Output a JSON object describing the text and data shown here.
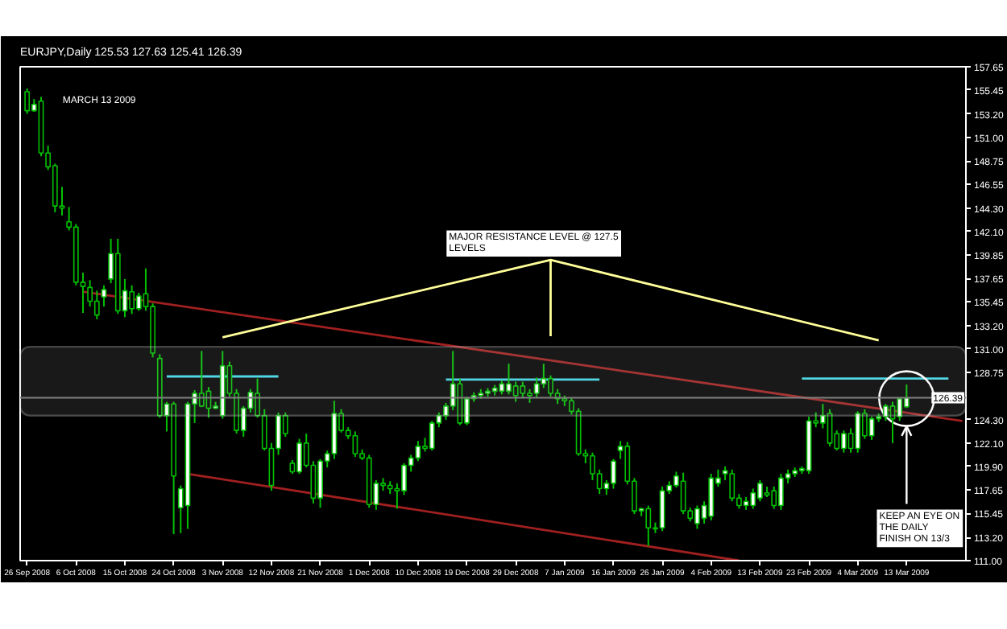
{
  "chart_data": {
    "type": "candlestick",
    "title": "EURJPY,Daily  125.53 127.63 125.41 126.39",
    "annotations": [
      "MARCH 13 2009",
      "MAJOR RESISTANCE LEVEL @ 127.5 LEVELS",
      {
        "text": "KEEP AN EYE ON THE DAILY FINISH ON 13/3",
        "x": "13 Mar 2009",
        "y": 123.7
      }
    ],
    "categories": [
      "26 Sep 2008",
      null,
      null,
      null,
      null,
      null,
      null,
      "6 Oct 2008",
      null,
      null,
      null,
      null,
      null,
      null,
      "15 Oct 2008",
      null,
      null,
      null,
      null,
      null,
      null,
      "24 Oct 2008",
      null,
      null,
      null,
      null,
      null,
      null,
      "3 Nov 2008",
      null,
      null,
      null,
      null,
      null,
      null,
      "12 Nov 2008",
      null,
      null,
      null,
      null,
      null,
      null,
      "21 Nov 2008",
      null,
      null,
      null,
      null,
      null,
      null,
      "1 Dec 2008",
      null,
      null,
      null,
      null,
      null,
      null,
      "10 Dec 2008",
      null,
      null,
      null,
      null,
      null,
      null,
      "19 Dec 2008",
      null,
      null,
      null,
      null,
      null,
      null,
      "29 Dec 2008",
      null,
      null,
      null,
      null,
      null,
      null,
      "7 Jan 2009",
      null,
      null,
      null,
      null,
      null,
      null,
      "16 Jan 2009",
      null,
      null,
      null,
      null,
      null,
      null,
      "26 Jan 2009",
      null,
      null,
      null,
      null,
      null,
      null,
      "4 Feb 2009",
      null,
      null,
      null,
      null,
      null,
      null,
      "13 Feb 2009",
      null,
      null,
      null,
      null,
      null,
      null,
      "23 Feb 2009",
      null,
      null,
      null,
      null,
      null,
      null,
      "4 Mar 2009",
      null,
      null,
      null,
      null,
      null,
      null,
      "13 Mar 2009",
      null,
      null,
      null,
      null,
      null,
      null,
      null,
      null
    ],
    "ohlc": [
      [
        155.3,
        155.6,
        153.2,
        153.5
      ],
      [
        153.5,
        154.6,
        153.4,
        154.1
      ],
      [
        154.4,
        154.8,
        149.2,
        149.5
      ],
      [
        149.5,
        150.2,
        147.9,
        148.2
      ],
      [
        148.3,
        148.5,
        143.9,
        144.5
      ],
      [
        144.5,
        146.3,
        143.6,
        144.3
      ],
      [
        143.0,
        144.4,
        142.2,
        142.5
      ],
      [
        142.5,
        142.8,
        137.0,
        137.3
      ],
      [
        137.3,
        138.2,
        134.4,
        136.9
      ],
      [
        136.8,
        137.5,
        135.0,
        135.5
      ],
      [
        135.5,
        136.5,
        133.8,
        134.2
      ],
      [
        135.9,
        137.0,
        135.0,
        136.6
      ],
      [
        137.6,
        141.4,
        137.2,
        140.0
      ],
      [
        140.0,
        141.4,
        134.3,
        134.6
      ],
      [
        134.6,
        137.6,
        134.0,
        136.5
      ],
      [
        136.4,
        137.0,
        134.3,
        134.8
      ],
      [
        134.8,
        136.3,
        134.6,
        136.0
      ],
      [
        136.2,
        138.6,
        134.6,
        135.0
      ],
      [
        135.0,
        135.3,
        130.2,
        130.6
      ],
      [
        130.1,
        130.5,
        124.5,
        124.7
      ],
      [
        124.7,
        126.0,
        123.2,
        125.8
      ],
      [
        125.8,
        126.0,
        113.5,
        119.0
      ],
      [
        116.0,
        118.1,
        113.6,
        117.8
      ],
      [
        116.2,
        126.0,
        114.0,
        125.8
      ],
      [
        125.8,
        127.1,
        124.0,
        126.8
      ],
      [
        126.8,
        130.8,
        125.5,
        125.6
      ],
      [
        127.0,
        127.4,
        124.5,
        125.4
      ],
      [
        125.4,
        126.0,
        125.3,
        125.6
      ],
      [
        124.7,
        130.8,
        124.4,
        129.4
      ],
      [
        129.4,
        129.8,
        126.5,
        126.8
      ],
      [
        126.8,
        127.2,
        123.0,
        123.3
      ],
      [
        123.3,
        125.6,
        122.7,
        125.4
      ],
      [
        125.4,
        127.2,
        125.0,
        126.9
      ],
      [
        126.8,
        128.2,
        124.5,
        124.7
      ],
      [
        124.7,
        125.3,
        121.4,
        121.6
      ],
      [
        121.6,
        122.1,
        117.6,
        118.1
      ],
      [
        121.6,
        125.0,
        121.0,
        124.7
      ],
      [
        124.7,
        125.0,
        122.7,
        123.0
      ],
      [
        120.2,
        120.5,
        119.2,
        119.4
      ],
      [
        119.4,
        122.5,
        119.2,
        122.1
      ],
      [
        122.1,
        123.0,
        119.8,
        120.0
      ],
      [
        120.0,
        120.4,
        116.4,
        116.9
      ],
      [
        116.9,
        120.6,
        116.0,
        120.4
      ],
      [
        120.4,
        121.4,
        119.8,
        121.1
      ],
      [
        121.1,
        126.1,
        120.6,
        124.9
      ],
      [
        124.9,
        125.3,
        123.1,
        123.3
      ],
      [
        123.3,
        123.6,
        122.5,
        122.8
      ],
      [
        122.8,
        123.2,
        120.8,
        121.1
      ],
      [
        121.1,
        121.5,
        120.5,
        120.7
      ],
      [
        120.7,
        121.0,
        116.0,
        116.3
      ],
      [
        116.3,
        118.6,
        115.8,
        118.3
      ],
      [
        118.3,
        118.8,
        117.6,
        118.1
      ],
      [
        118.1,
        118.5,
        117.3,
        117.8
      ],
      [
        117.8,
        118.3,
        115.9,
        117.6
      ],
      [
        117.6,
        120.2,
        117.2,
        120.0
      ],
      [
        120.0,
        121.0,
        119.4,
        120.7
      ],
      [
        120.7,
        122.3,
        120.4,
        121.8
      ],
      [
        121.8,
        122.6,
        121.3,
        121.6
      ],
      [
        121.6,
        124.2,
        121.4,
        124.0
      ],
      [
        124.0,
        125.0,
        123.6,
        124.7
      ],
      [
        124.7,
        125.9,
        124.3,
        125.6
      ],
      [
        125.6,
        130.8,
        125.2,
        127.7
      ],
      [
        127.7,
        128.2,
        123.8,
        124.0
      ],
      [
        124.0,
        126.5,
        123.8,
        126.3
      ],
      [
        126.3,
        126.9,
        126.0,
        126.6
      ],
      [
        126.6,
        127.2,
        126.3,
        126.8
      ],
      [
        126.8,
        127.3,
        126.5,
        127.0
      ],
      [
        127.0,
        127.6,
        126.6,
        127.3
      ],
      [
        127.0,
        128.0,
        126.7,
        127.7
      ],
      [
        127.0,
        129.6,
        126.7,
        127.7
      ],
      [
        127.5,
        127.9,
        126.0,
        126.6
      ],
      [
        127.5,
        127.9,
        126.4,
        126.8
      ],
      [
        126.8,
        127.2,
        125.9,
        126.6
      ],
      [
        126.8,
        128.3,
        126.4,
        127.7
      ],
      [
        127.7,
        129.6,
        127.3,
        128.2
      ],
      [
        128.2,
        128.5,
        126.5,
        126.8
      ],
      [
        126.8,
        127.2,
        125.8,
        126.3
      ],
      [
        126.3,
        126.6,
        125.6,
        126.1
      ],
      [
        126.1,
        126.4,
        124.8,
        125.1
      ],
      [
        125.1,
        125.4,
        120.9,
        121.1
      ],
      [
        121.1,
        121.5,
        120.2,
        120.9
      ],
      [
        120.9,
        121.2,
        118.6,
        119.2
      ],
      [
        119.2,
        119.6,
        117.3,
        117.8
      ],
      [
        117.8,
        118.6,
        117.2,
        118.3
      ],
      [
        118.3,
        120.6,
        117.8,
        120.4
      ],
      [
        121.4,
        122.3,
        120.6,
        121.8
      ],
      [
        121.8,
        122.2,
        118.2,
        118.5
      ],
      [
        118.5,
        118.8,
        115.4,
        115.7
      ],
      [
        115.7,
        116.0,
        115.2,
        115.9
      ],
      [
        115.9,
        116.2,
        112.4,
        114.1
      ],
      [
        114.1,
        114.6,
        113.6,
        114.0
      ],
      [
        114.1,
        118.0,
        113.8,
        117.6
      ],
      [
        117.6,
        118.5,
        117.3,
        118.1
      ],
      [
        118.1,
        119.4,
        117.9,
        119.0
      ],
      [
        118.5,
        119.3,
        115.4,
        115.7
      ],
      [
        115.7,
        116.0,
        114.7,
        115.0
      ],
      [
        114.5,
        116.2,
        114.0,
        115.9
      ],
      [
        115.0,
        116.6,
        114.5,
        116.2
      ],
      [
        115.2,
        119.2,
        114.8,
        118.8
      ],
      [
        118.3,
        119.6,
        118.0,
        118.8
      ],
      [
        119.2,
        119.9,
        118.6,
        119.5
      ],
      [
        119.2,
        119.6,
        116.6,
        116.9
      ],
      [
        116.9,
        117.3,
        115.9,
        116.2
      ],
      [
        116.2,
        117.0,
        115.8,
        116.6
      ],
      [
        116.2,
        117.8,
        115.9,
        117.4
      ],
      [
        116.9,
        118.6,
        116.6,
        118.3
      ],
      [
        117.4,
        118.0,
        117.0,
        117.2
      ],
      [
        117.6,
        118.0,
        115.9,
        116.2
      ],
      [
        116.2,
        119.2,
        115.8,
        118.8
      ],
      [
        118.8,
        119.6,
        118.3,
        119.2
      ],
      [
        119.2,
        119.8,
        118.9,
        119.5
      ],
      [
        119.5,
        119.9,
        119.2,
        119.7
      ],
      [
        119.5,
        124.6,
        119.2,
        124.2
      ],
      [
        124.2,
        125.0,
        123.6,
        124.0
      ],
      [
        124.0,
        125.8,
        123.5,
        124.7
      ],
      [
        124.9,
        125.3,
        121.8,
        122.1
      ],
      [
        123.0,
        123.3,
        121.4,
        121.6
      ],
      [
        121.6,
        123.3,
        121.2,
        123.0
      ],
      [
        123.0,
        123.5,
        121.2,
        121.6
      ],
      [
        121.6,
        125.1,
        121.2,
        124.9
      ],
      [
        124.9,
        125.3,
        122.5,
        122.8
      ],
      [
        122.8,
        124.6,
        122.4,
        124.4
      ],
      [
        124.4,
        124.9,
        124.1,
        124.6
      ],
      [
        124.6,
        125.8,
        124.2,
        125.6
      ],
      [
        125.6,
        126.0,
        122.1,
        124.4
      ],
      [
        124.6,
        126.4,
        124.2,
        126.3
      ],
      [
        125.53,
        127.63,
        125.41,
        126.39
      ],
      null,
      null,
      null,
      null,
      null,
      null,
      null,
      null
    ],
    "color": "#00c000",
    "series": [
      {
        "type": "line",
        "color": "#a02020",
        "values": [
          null,
          null,
          null,
          null,
          null,
          null,
          null,
          null,
          136.4,
          null,
          null,
          null,
          null,
          null,
          null,
          null,
          null,
          null,
          null,
          null,
          null,
          null,
          null,
          null,
          null,
          null,
          null,
          null,
          null,
          null,
          null,
          null,
          null,
          null,
          null,
          null,
          null,
          null,
          null,
          null,
          null,
          null,
          null,
          null,
          null,
          null,
          null,
          null,
          null,
          null,
          null,
          null,
          null,
          null,
          null,
          null,
          null,
          null,
          null,
          null,
          null,
          null,
          null,
          null,
          null,
          null,
          null,
          null,
          null,
          null,
          null,
          null,
          null,
          null,
          null,
          null,
          null,
          null,
          null,
          null,
          null,
          null,
          null,
          null,
          null,
          null,
          null,
          null,
          null,
          null,
          null,
          null,
          null,
          null,
          null,
          null,
          null,
          null,
          null,
          null,
          null,
          null,
          null,
          null,
          null,
          null,
          null,
          null,
          null,
          null,
          null,
          null,
          null,
          null,
          null,
          null,
          null,
          null,
          null,
          null,
          null,
          null,
          null,
          null,
          null,
          null,
          null,
          null,
          null,
          null,
          null,
          null,
          null,
          null,
          124.2
        ]
      },
      {
        "type": "line",
        "color": "#a02020",
        "values": [
          null,
          null,
          null,
          null,
          null,
          null,
          null,
          null,
          null,
          null,
          null,
          null,
          null,
          null,
          null,
          null,
          null,
          null,
          null,
          null,
          null,
          null,
          null,
          119.2,
          null,
          null,
          null,
          null,
          null,
          null,
          null,
          null,
          null,
          null,
          null,
          null,
          null,
          null,
          null,
          null,
          null,
          null,
          null,
          null,
          null,
          null,
          null,
          null,
          null,
          null,
          null,
          null,
          null,
          null,
          null,
          null,
          null,
          null,
          null,
          null,
          null,
          null,
          null,
          null,
          null,
          null,
          null,
          null,
          null,
          null,
          null,
          null,
          null,
          null,
          null,
          null,
          null,
          null,
          null,
          null,
          null,
          null,
          null,
          null,
          null,
          null,
          null,
          null,
          null,
          null,
          null,
          null,
          null,
          null,
          null,
          null,
          null,
          null,
          null,
          null,
          null,
          null,
          111.0,
          null,
          null,
          null,
          null,
          null,
          null,
          null,
          null,
          null,
          null,
          null,
          null,
          null,
          null,
          null,
          null,
          null,
          null,
          null,
          null,
          null,
          null,
          null,
          null,
          null,
          null,
          null,
          null,
          null,
          null,
          null,
          null
        ]
      },
      {
        "type": "line",
        "color": "#40d8e8",
        "values": [
          null,
          null,
          null,
          null,
          null,
          null,
          null,
          null,
          null,
          null,
          null,
          null,
          null,
          null,
          null,
          null,
          null,
          null,
          null,
          null,
          128.4,
          null,
          null,
          null,
          null,
          null,
          null,
          null,
          null,
          null,
          null,
          null,
          null,
          null,
          null,
          null,
          128.4,
          null,
          null,
          null,
          null,
          null,
          null,
          null,
          null,
          null,
          null,
          null,
          null,
          null,
          null,
          null,
          null,
          null,
          null,
          null,
          null,
          null,
          null,
          null,
          null,
          null,
          null,
          null,
          null,
          null,
          null,
          null,
          null,
          null,
          null,
          null,
          null,
          null,
          null,
          null,
          null,
          null,
          null,
          null,
          null,
          null,
          null,
          null,
          null,
          null,
          null,
          null,
          null,
          null,
          null,
          null,
          null,
          null,
          null,
          null,
          null,
          null,
          null,
          null,
          null,
          null,
          null,
          null,
          null,
          null,
          null,
          null,
          null,
          null,
          null,
          null,
          null,
          null,
          null,
          null,
          null,
          null,
          null,
          null,
          null,
          null,
          null,
          null,
          null,
          null,
          null,
          null,
          null,
          null,
          null,
          null,
          null,
          null,
          null
        ]
      },
      {
        "type": "line",
        "color": "#40d8e8",
        "values": [
          null,
          null,
          null,
          null,
          null,
          null,
          null,
          null,
          null,
          null,
          null,
          null,
          null,
          null,
          null,
          null,
          null,
          null,
          null,
          null,
          null,
          null,
          null,
          null,
          null,
          null,
          null,
          null,
          null,
          null,
          null,
          null,
          null,
          null,
          null,
          null,
          null,
          null,
          null,
          null,
          null,
          null,
          null,
          null,
          null,
          null,
          null,
          null,
          null,
          null,
          null,
          null,
          null,
          null,
          null,
          null,
          null,
          null,
          null,
          null,
          128.1,
          null,
          null,
          null,
          null,
          null,
          null,
          null,
          null,
          null,
          null,
          null,
          null,
          null,
          null,
          null,
          null,
          null,
          null,
          null,
          null,
          null,
          128.1,
          null,
          null,
          null,
          null,
          null,
          null,
          null,
          null,
          null,
          null,
          null,
          null,
          null,
          null,
          null,
          null,
          null,
          null,
          null,
          null,
          null,
          null,
          null,
          null,
          null,
          null,
          null,
          null,
          null,
          null,
          null,
          null,
          null,
          null,
          null,
          null,
          null,
          null,
          null,
          null,
          null,
          null,
          null,
          null,
          null,
          null,
          null,
          null,
          null,
          null,
          null,
          null
        ]
      },
      {
        "type": "line",
        "color": "#40d8e8",
        "values": [
          null,
          null,
          null,
          null,
          null,
          null,
          null,
          null,
          null,
          null,
          null,
          null,
          null,
          null,
          null,
          null,
          null,
          null,
          null,
          null,
          null,
          null,
          null,
          null,
          null,
          null,
          null,
          null,
          null,
          null,
          null,
          null,
          null,
          null,
          null,
          null,
          null,
          null,
          null,
          null,
          null,
          null,
          null,
          null,
          null,
          null,
          null,
          null,
          null,
          null,
          null,
          null,
          null,
          null,
          null,
          null,
          null,
          null,
          null,
          null,
          null,
          null,
          null,
          null,
          null,
          null,
          null,
          null,
          null,
          null,
          null,
          null,
          null,
          null,
          null,
          null,
          null,
          null,
          null,
          null,
          null,
          null,
          null,
          null,
          null,
          null,
          null,
          null,
          null,
          null,
          null,
          null,
          null,
          null,
          null,
          null,
          null,
          null,
          null,
          null,
          null,
          null,
          null,
          null,
          null,
          null,
          null,
          null,
          null,
          null,
          null,
          128.2,
          null,
          null,
          null,
          null,
          null,
          null,
          null,
          null,
          null,
          null,
          null,
          null,
          null,
          null,
          null,
          null,
          null,
          null,
          null,
          null,
          128.2,
          null,
          null
        ]
      },
      {
        "type": "line",
        "color": "#ffff99",
        "errors": [
          null,
          null,
          null,
          null,
          null,
          null,
          null,
          null,
          null,
          null,
          null,
          null,
          null,
          null,
          null,
          null,
          null,
          null,
          null,
          null,
          null,
          null,
          null,
          null,
          null,
          null,
          null,
          null,
          null,
          null,
          null,
          null,
          null,
          null,
          null,
          null,
          null,
          null,
          null,
          null,
          null,
          null,
          null,
          null,
          null,
          null,
          null,
          null,
          null,
          null,
          null,
          null,
          null,
          null,
          null,
          null,
          null,
          null,
          null,
          null,
          null,
          null,
          null,
          null,
          null,
          null,
          null,
          null,
          null,
          null,
          null,
          null,
          null,
          null,
          null,
          [
            132.2,
            139.4
          ],
          null,
          null,
          null,
          null,
          null,
          null,
          null,
          null,
          null,
          null,
          null,
          null,
          null,
          null,
          null,
          null,
          null,
          null,
          null,
          null,
          null,
          null,
          null,
          null,
          null,
          null,
          null,
          null,
          null,
          null,
          null,
          null,
          null,
          null,
          null,
          null,
          null,
          null,
          null,
          null,
          null,
          null,
          null,
          null,
          null,
          null,
          null,
          null,
          null,
          null,
          null,
          null,
          null,
          null,
          null,
          null,
          null,
          null,
          null
        ],
        "values": [
          null,
          null,
          null,
          null,
          null,
          null,
          null,
          null,
          null,
          null,
          null,
          null,
          null,
          null,
          null,
          null,
          null,
          null,
          null,
          null,
          null,
          null,
          null,
          null,
          null,
          null,
          null,
          null,
          132.1,
          null,
          null,
          null,
          null,
          null,
          null,
          null,
          null,
          null,
          null,
          null,
          null,
          null,
          null,
          null,
          null,
          null,
          null,
          null,
          null,
          null,
          null,
          null,
          null,
          null,
          null,
          null,
          null,
          null,
          null,
          null,
          null,
          null,
          null,
          null,
          null,
          null,
          null,
          null,
          null,
          null,
          null,
          null,
          null,
          null,
          null,
          139.4,
          null,
          null,
          null,
          null,
          null,
          null,
          null,
          null,
          null,
          null,
          null,
          null,
          null,
          null,
          null,
          null,
          null,
          null,
          null,
          null,
          null,
          null,
          null,
          null,
          null,
          null,
          null,
          null,
          null,
          null,
          null,
          null,
          null,
          null,
          null,
          null,
          null,
          null,
          null,
          null,
          null,
          null,
          null,
          null,
          null,
          null,
          131.8,
          null,
          null,
          null,
          null,
          null,
          null,
          null,
          null,
          null,
          null,
          null,
          null
        ]
      },
      {
        "type": "scatter",
        "color": "#ffffff",
        "marker": "circle",
        "values": [
          null,
          null,
          null,
          null,
          null,
          null,
          null,
          null,
          null,
          null,
          null,
          null,
          null,
          null,
          null,
          null,
          null,
          null,
          null,
          null,
          null,
          null,
          null,
          null,
          null,
          null,
          null,
          null,
          null,
          null,
          null,
          null,
          null,
          null,
          null,
          null,
          null,
          null,
          null,
          null,
          null,
          null,
          null,
          null,
          null,
          null,
          null,
          null,
          null,
          null,
          null,
          null,
          null,
          null,
          null,
          null,
          null,
          null,
          null,
          null,
          null,
          null,
          null,
          null,
          null,
          null,
          null,
          null,
          null,
          null,
          null,
          null,
          null,
          null,
          null,
          null,
          null,
          null,
          null,
          null,
          null,
          null,
          null,
          null,
          null,
          null,
          null,
          null,
          null,
          null,
          null,
          null,
          null,
          null,
          null,
          null,
          null,
          null,
          null,
          null,
          null,
          null,
          null,
          null,
          null,
          null,
          null,
          null,
          null,
          null,
          null,
          null,
          null,
          null,
          null,
          null,
          null,
          null,
          null,
          null,
          null,
          null,
          null,
          null,
          null,
          null,
          126.3,
          null,
          null,
          null,
          null,
          null,
          null,
          null,
          null
        ]
      }
    ],
    "bands": [
      {
        "axis": "y",
        "from": 124.7,
        "to": 131.2,
        "color": "#d0d0d0"
      }
    ],
    "ylim": [
      111.0,
      157.65
    ],
    "yticks": [
      {
        "value": 157.65,
        "label": "157.65"
      },
      {
        "value": 155.45,
        "label": "155.45"
      },
      {
        "value": 153.2,
        "label": "153.20"
      },
      {
        "value": 151.0,
        "label": "151.00"
      },
      {
        "value": 148.75,
        "label": "148.75"
      },
      {
        "value": 146.55,
        "label": "146.55"
      },
      {
        "value": 144.3,
        "label": "144.30"
      },
      {
        "value": 142.1,
        "label": "142.10"
      },
      {
        "value": 139.85,
        "label": "139.85"
      },
      {
        "value": 137.65,
        "label": "137.65"
      },
      {
        "value": 135.45,
        "label": "135.45"
      },
      {
        "value": 133.2,
        "label": "133.20"
      },
      {
        "value": 131.0,
        "label": "131.00"
      },
      {
        "value": 128.75,
        "label": "128.75"
      },
      {
        "value": 124.3,
        "label": "124.30"
      },
      {
        "value": 122.1,
        "label": "122.10"
      },
      {
        "value": 119.9,
        "label": "119.90"
      },
      {
        "value": 117.65,
        "label": "117.65"
      },
      {
        "value": 115.45,
        "label": "115.45"
      },
      {
        "value": 113.2,
        "label": "113.20"
      },
      {
        "value": 111.0,
        "label": "111.00"
      }
    ],
    "ref_lines": [
      {
        "axis": "y",
        "value": 126.39,
        "label": "126.39",
        "color": "#808080"
      }
    ],
    "grid": false
  }
}
